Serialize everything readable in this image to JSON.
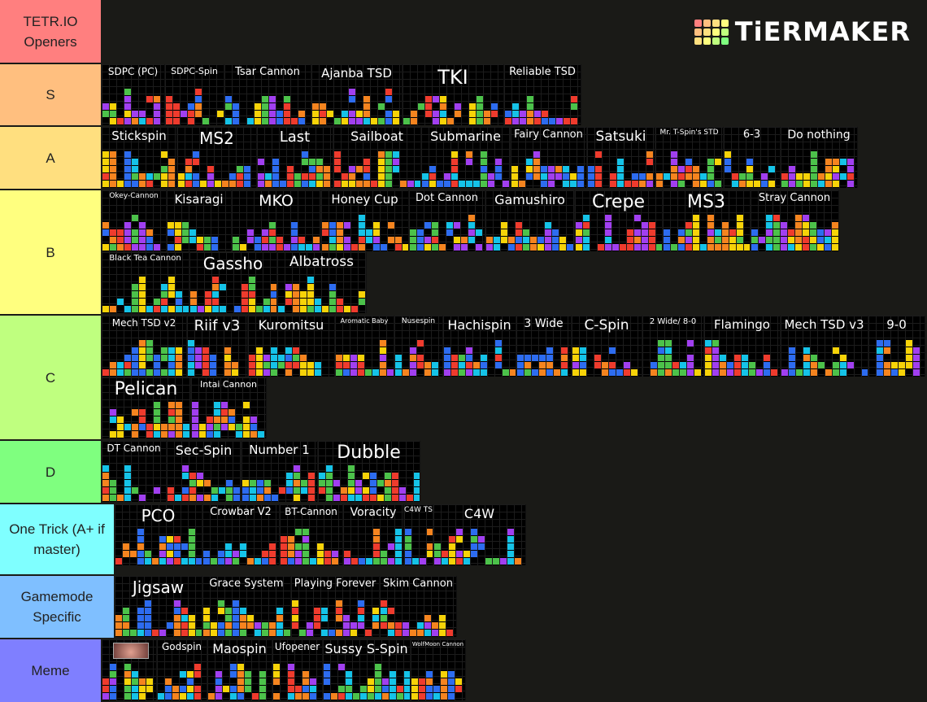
{
  "header": {
    "title": "TETR.IO Openers",
    "logo_text": "TiERMAKER",
    "color": "#ff7f7f"
  },
  "tiers": [
    {
      "label": "S",
      "color": "#ffbf7f",
      "items": [
        "SDPC (PC)",
        "SDPC-Spin",
        "Tsar Cannon",
        "Ajanba TSD",
        "TKI",
        "Reliable TSD"
      ]
    },
    {
      "label": "A",
      "color": "#ffdf7f",
      "items": [
        "Stickspin",
        "MS2",
        "Last",
        "Sailboat",
        "Submarine",
        "Fairy Cannon",
        "Satsuki",
        "Mr. T-Spin's STD",
        "6-3",
        "Do nothing"
      ]
    },
    {
      "label": "B",
      "color": "#ffff7f",
      "items": [
        "Okey-Cannon",
        "Kisaragi",
        "MKO",
        "Honey Cup",
        "Dot Cannon",
        "Gamushiro",
        "Crepe",
        "MS3",
        "Stray Cannon",
        "Black Tea Cannon",
        "Gassho",
        "Albatross"
      ]
    },
    {
      "label": "C",
      "color": "#bfff7f",
      "items": [
        "Mech TSD v2",
        "Riif v3",
        "Kuromitsu",
        "Aromatic Baby",
        "Nusespin",
        "Hachispin",
        "3 Wide",
        "C-Spin",
        "2 Wide/ 8-0",
        "Flamingo",
        "Mech TSD v3",
        "9-0",
        "Pelican",
        "Intai Cannon"
      ]
    },
    {
      "label": "D",
      "color": "#7fff7f",
      "items": [
        "DT Cannon",
        "Sec-Spin",
        "Number 1",
        "Dubble"
      ]
    },
    {
      "label": "One Trick (A+ if master)",
      "color": "#7fffff",
      "items": [
        "PCO",
        "Crowbar V2",
        "BT-Cannon",
        "Voracity",
        "C4W TST",
        "C4W"
      ]
    },
    {
      "label": "Gamemode Specific",
      "color": "#7fbfff",
      "items": [
        "Jigsaw",
        "Grace System",
        "Playing Forever",
        "Skim Cannon"
      ]
    },
    {
      "label": "Meme",
      "color": "#7f7fff",
      "items": [
        "",
        "Godspin",
        "Maospin",
        "Ufopener",
        "Sussy S-Spin",
        "WolfMoon Cannon"
      ]
    }
  ],
  "block_colors": [
    "#ef3b2d",
    "#f5841f",
    "#f7d308",
    "#4cc24a",
    "#15c3e8",
    "#2d6cf0",
    "#a13ff0"
  ]
}
